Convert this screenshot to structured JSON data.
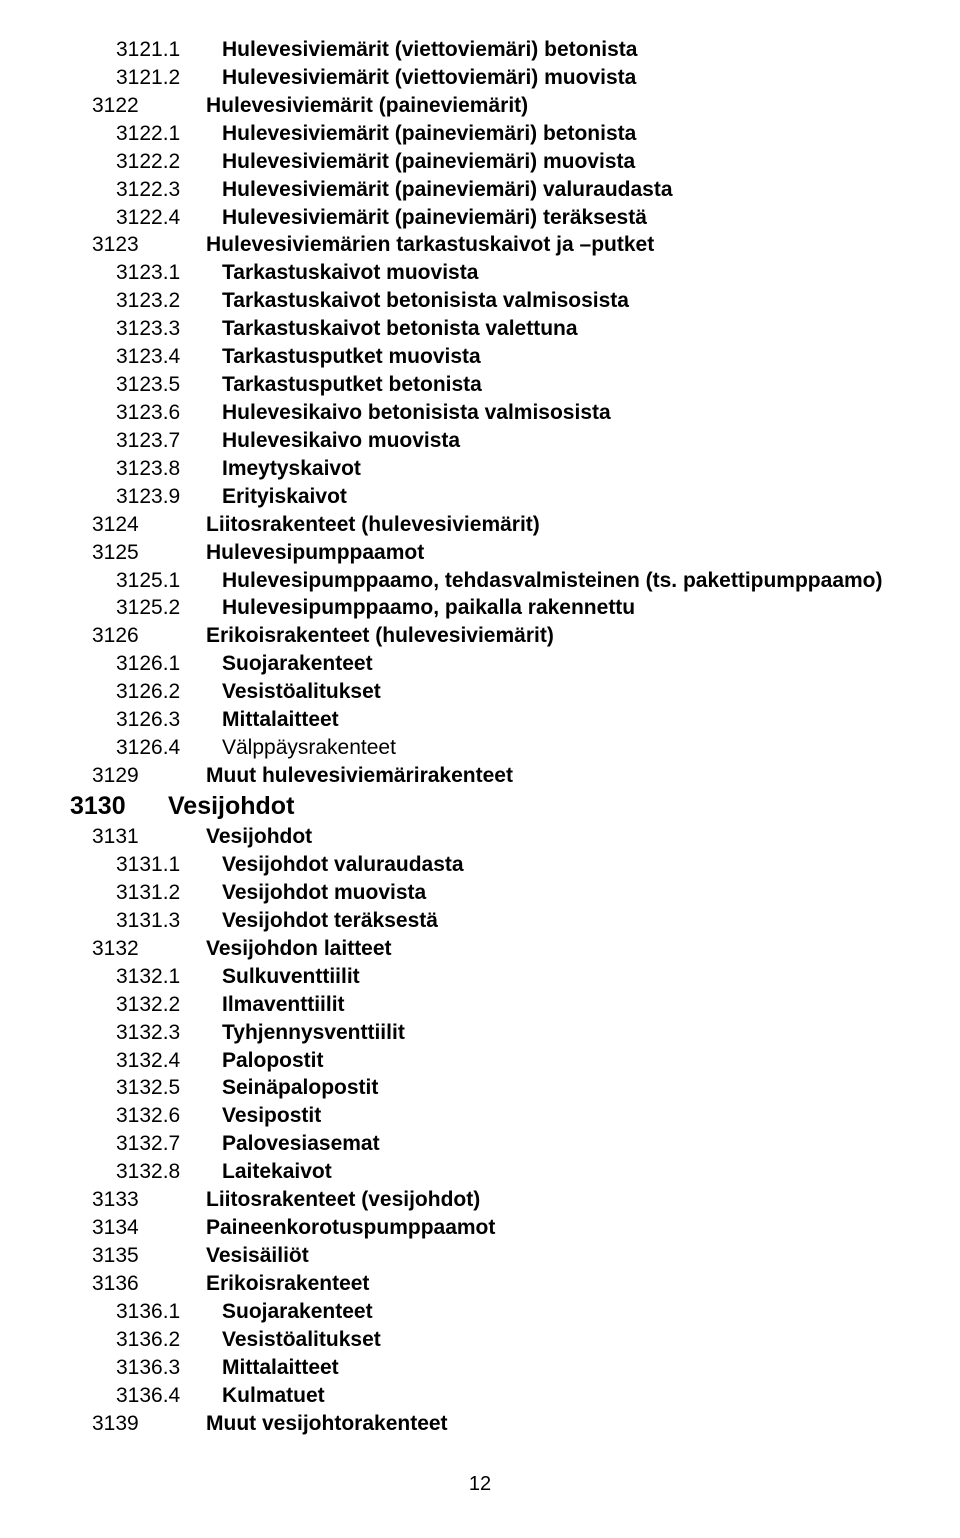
{
  "pageNumber": "12",
  "lines": [
    {
      "lvl": 2,
      "code": "3121.1",
      "text": "Hulevesiviemärit (viettoviemäri) betonista",
      "bold": true
    },
    {
      "lvl": 2,
      "code": "3121.2",
      "text": "Hulevesiviemärit (viettoviemäri) muovista",
      "bold": true
    },
    {
      "lvl": 1,
      "code": "3122",
      "text": "Hulevesiviemärit (paineviemärit)",
      "bold": true
    },
    {
      "lvl": 2,
      "code": "3122.1",
      "text": "Hulevesiviemärit (paineviemäri) betonista",
      "bold": true
    },
    {
      "lvl": 2,
      "code": "3122.2",
      "text": "Hulevesiviemärit (paineviemäri) muovista",
      "bold": true
    },
    {
      "lvl": 2,
      "code": "3122.3",
      "text": "Hulevesiviemärit (paineviemäri) valuraudasta",
      "bold": true
    },
    {
      "lvl": 2,
      "code": "3122.4",
      "text": "Hulevesiviemärit (paineviemäri) teräksestä",
      "bold": true
    },
    {
      "lvl": 1,
      "code": "3123",
      "text": "Hulevesiviemärien tarkastuskaivot ja –putket",
      "bold": true
    },
    {
      "lvl": 2,
      "code": "3123.1",
      "text": "Tarkastuskaivot muovista",
      "bold": true
    },
    {
      "lvl": 2,
      "code": "3123.2",
      "text": "Tarkastuskaivot betonisista valmisosista",
      "bold": true
    },
    {
      "lvl": 2,
      "code": "3123.3",
      "text": "Tarkastuskaivot betonista valettuna",
      "bold": true
    },
    {
      "lvl": 2,
      "code": "3123.4",
      "text": "Tarkastusputket muovista",
      "bold": true
    },
    {
      "lvl": 2,
      "code": "3123.5",
      "text": "Tarkastusputket betonista",
      "bold": true
    },
    {
      "lvl": 2,
      "code": "3123.6",
      "text": "Hulevesikaivo betonisista valmisosista",
      "bold": true
    },
    {
      "lvl": 2,
      "code": "3123.7",
      "text": "Hulevesikaivo muovista",
      "bold": true
    },
    {
      "lvl": 2,
      "code": "3123.8",
      "text": "Imeytyskaivot",
      "bold": true
    },
    {
      "lvl": 2,
      "code": "3123.9",
      "text": "Erityiskaivot",
      "bold": true
    },
    {
      "lvl": 1,
      "code": "3124",
      "text": "Liitosrakenteet (hulevesiviemärit)",
      "bold": true
    },
    {
      "lvl": 1,
      "code": "3125",
      "text": "Hulevesipumppaamot",
      "bold": true
    },
    {
      "lvl": 2,
      "code": "3125.1",
      "text": "Hulevesipumppaamo, tehdasvalmisteinen (ts. pakettipumppaamo)",
      "bold": true
    },
    {
      "lvl": 2,
      "code": "3125.2",
      "text": "Hulevesipumppaamo, paikalla rakennettu",
      "bold": true
    },
    {
      "lvl": 1,
      "code": "3126",
      "text": "Erikoisrakenteet (hulevesiviemärit)",
      "bold": true
    },
    {
      "lvl": 2,
      "code": "3126.1",
      "text": "Suojarakenteet",
      "bold": true
    },
    {
      "lvl": 2,
      "code": "3126.2",
      "text": "Vesistöalitukset",
      "bold": true
    },
    {
      "lvl": 2,
      "code": "3126.3",
      "text": "Mittalaitteet",
      "bold": true
    },
    {
      "lvl": 2,
      "code": "3126.4",
      "text": "Välppäysrakenteet",
      "bold": false
    },
    {
      "lvl": 1,
      "code": "3129",
      "text": "Muut hulevesiviemärirakenteet",
      "bold": true
    },
    {
      "lvl": 0,
      "code": "3130",
      "text": "Vesijohdot",
      "bold": true
    },
    {
      "lvl": 1,
      "code": "3131",
      "text": "Vesijohdot",
      "bold": true
    },
    {
      "lvl": 2,
      "code": "3131.1",
      "text": "Vesijohdot valuraudasta",
      "bold": true
    },
    {
      "lvl": 2,
      "code": "3131.2",
      "text": "Vesijohdot muovista",
      "bold": true
    },
    {
      "lvl": 2,
      "code": "3131.3",
      "text": "Vesijohdot teräksestä",
      "bold": true
    },
    {
      "lvl": 1,
      "code": "3132",
      "text": "Vesijohdon laitteet",
      "bold": true
    },
    {
      "lvl": 2,
      "code": "3132.1",
      "text": "Sulkuventtiilit",
      "bold": true
    },
    {
      "lvl": 2,
      "code": "3132.2",
      "text": "Ilmaventtiilit",
      "bold": true
    },
    {
      "lvl": 2,
      "code": "3132.3",
      "text": "Tyhjennysventtiilit",
      "bold": true
    },
    {
      "lvl": 2,
      "code": "3132.4",
      "text": "Palopostit",
      "bold": true
    },
    {
      "lvl": 2,
      "code": "3132.5",
      "text": "Seinäpalopostit",
      "bold": true
    },
    {
      "lvl": 2,
      "code": "3132.6",
      "text": "Vesipostit",
      "bold": true
    },
    {
      "lvl": 2,
      "code": "3132.7",
      "text": "Palovesiasemat",
      "bold": true
    },
    {
      "lvl": 2,
      "code": "3132.8",
      "text": "Laitekaivot",
      "bold": true
    },
    {
      "lvl": 1,
      "code": "3133",
      "text": "Liitosrakenteet (vesijohdot)",
      "bold": true
    },
    {
      "lvl": 1,
      "code": "3134",
      "text": "Paineenkorotuspumppaamot",
      "bold": true
    },
    {
      "lvl": 1,
      "code": "3135",
      "text": "Vesisäiliöt",
      "bold": true
    },
    {
      "lvl": 1,
      "code": "3136",
      "text": "Erikoisrakenteet",
      "bold": true
    },
    {
      "lvl": 2,
      "code": "3136.1",
      "text": "Suojarakenteet",
      "bold": true
    },
    {
      "lvl": 2,
      "code": "3136.2",
      "text": "Vesistöalitukset",
      "bold": true
    },
    {
      "lvl": 2,
      "code": "3136.3",
      "text": "Mittalaitteet",
      "bold": true
    },
    {
      "lvl": 2,
      "code": "3136.4",
      "text": "Kulmatuet",
      "bold": true
    },
    {
      "lvl": 1,
      "code": "3139",
      "text": "Muut vesijohtorakenteet",
      "bold": true
    }
  ]
}
